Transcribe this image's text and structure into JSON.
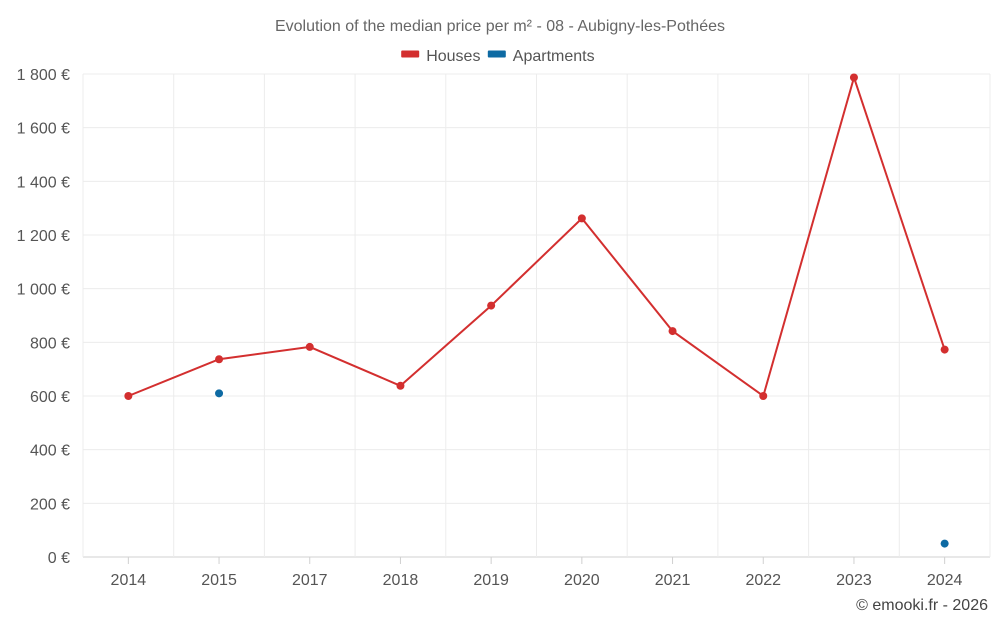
{
  "chart_data": {
    "type": "line",
    "title": "Evolution of the median price per m² - 08 - Aubigny-les-Pothées",
    "categories": [
      "2014",
      "2015",
      "2017",
      "2018",
      "2019",
      "2020",
      "2021",
      "2022",
      "2023",
      "2024"
    ],
    "ylim": [
      0,
      1800
    ],
    "yticks": [
      0,
      200,
      400,
      600,
      800,
      1000,
      1200,
      1400,
      1600,
      1800
    ],
    "ytick_labels": [
      "0 €",
      "200 €",
      "400 €",
      "600 €",
      "800 €",
      "1 000 €",
      "1 200 €",
      "1 400 €",
      "1 600 €",
      "1 800 €"
    ],
    "grid": true,
    "legend_position": "top-center",
    "series": [
      {
        "name": "Houses",
        "color": "#d32f2f",
        "line": true,
        "values": [
          600,
          737,
          783,
          638,
          937,
          1262,
          842,
          600,
          1787,
          773
        ]
      },
      {
        "name": "Apartments",
        "color": "#0d6aa3",
        "line": false,
        "values": [
          null,
          610,
          null,
          null,
          null,
          null,
          null,
          null,
          null,
          50
        ]
      }
    ]
  },
  "footer": {
    "credit": "© emooki.fr - 2026"
  }
}
